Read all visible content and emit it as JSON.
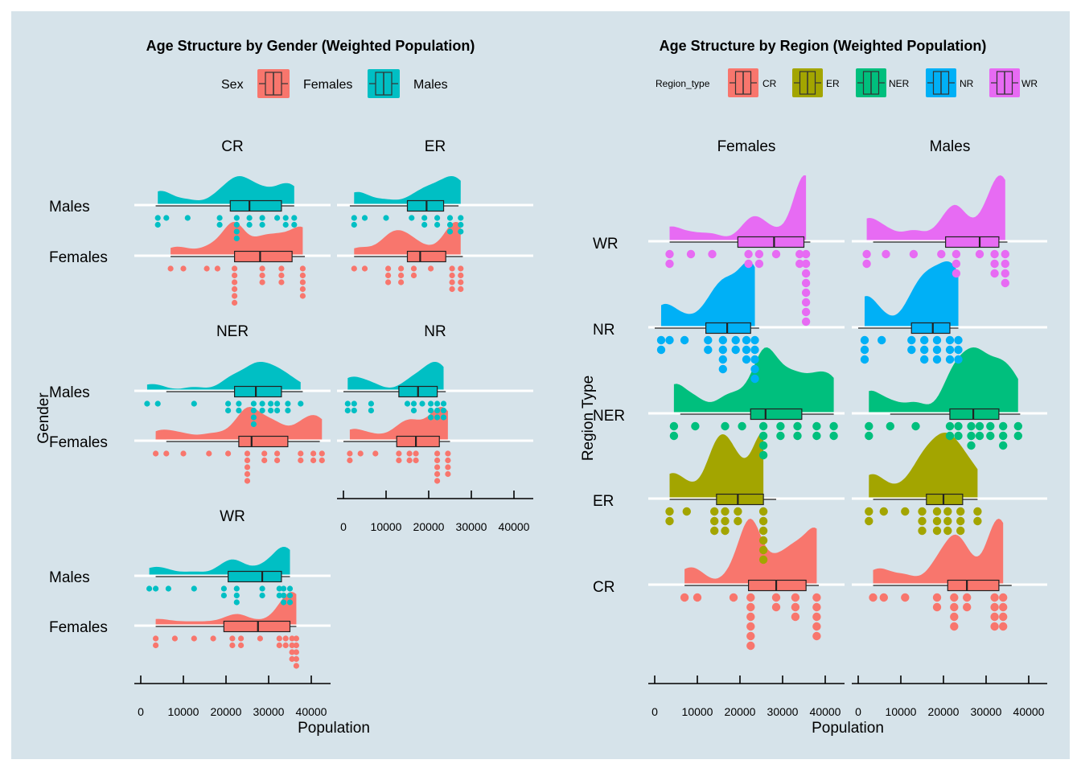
{
  "colors": {
    "background": "#d6e3ea",
    "gridline": "#ffffff",
    "Females": "#f8766d",
    "Males": "#00bfc4",
    "CR": "#f8766d",
    "ER": "#a3a500",
    "NER": "#00bf7d",
    "NR": "#00b0f6",
    "WR": "#e76bf3"
  },
  "chart_data": [
    {
      "type": "raincloud",
      "title": "Age Structure by Gender (Weighted Population)",
      "legend_title": "Sex",
      "legend_position": "top",
      "legend_entries": [
        "Females",
        "Males"
      ],
      "xlabel": "Population",
      "ylabel": "Gender",
      "x_ticks": [
        0,
        10000,
        20000,
        30000,
        40000
      ],
      "x_tick_labels": [
        "0",
        "10000",
        "20000",
        "30000",
        "40000"
      ],
      "xlim": [
        -1500,
        43500
      ],
      "categories": [
        "Males",
        "Females"
      ],
      "facets": [
        {
          "label": "CR",
          "series": [
            {
              "name": "Males",
              "box": {
                "q1": 21000,
                "median": 25500,
                "q3": 33000,
                "lo": 3500,
                "hi": 36000
              },
              "x": [
                4000,
                6000,
                11000,
                18500,
                22500,
                25500,
                28500,
                32000,
                34000,
                36000
              ],
              "dots": [
                2,
                1,
                1,
                2,
                4,
                2,
                2,
                1,
                2,
                2
              ]
            },
            {
              "name": "Females",
              "box": {
                "q1": 22000,
                "median": 28000,
                "q3": 35500,
                "lo": 7000,
                "hi": 38500
              },
              "x": [
                7000,
                10000,
                15500,
                18000,
                22000,
                28500,
                33000,
                38000
              ],
              "dots": [
                1,
                1,
                1,
                1,
                6,
                3,
                3,
                5
              ]
            }
          ]
        },
        {
          "label": "ER",
          "series": [
            {
              "name": "Males",
              "box": {
                "q1": 15000,
                "median": 19500,
                "q3": 23500,
                "lo": 1500,
                "hi": 27000
              },
              "x": [
                2500,
                5000,
                10000,
                16000,
                19000,
                22000,
                25000,
                27500
              ],
              "dots": [
                2,
                1,
                1,
                1,
                2,
                2,
                3,
                3
              ]
            },
            {
              "name": "Females",
              "box": {
                "q1": 15000,
                "median": 18000,
                "q3": 24000,
                "lo": 2500,
                "hi": 28000
              },
              "x": [
                2500,
                5000,
                10500,
                13500,
                16500,
                20500,
                25500,
                27500
              ],
              "dots": [
                1,
                1,
                3,
                3,
                2,
                1,
                4,
                4
              ]
            }
          ]
        },
        {
          "label": "NER",
          "series": [
            {
              "name": "Males",
              "box": {
                "q1": 22000,
                "median": 27000,
                "q3": 33000,
                "lo": 6000,
                "hi": 38000
              },
              "x": [
                1500,
                4000,
                12500,
                20500,
                23000,
                26500,
                28500,
                30500,
                32000,
                34500,
                37500
              ],
              "dots": [
                1,
                1,
                1,
                2,
                2,
                4,
                2,
                2,
                2,
                2,
                1
              ]
            },
            {
              "name": "Females",
              "box": {
                "q1": 23000,
                "median": 26000,
                "q3": 34500,
                "lo": 6000,
                "hi": 42000
              },
              "x": [
                3500,
                6000,
                10000,
                16000,
                20500,
                25000,
                29000,
                32000,
                37500,
                40500,
                42500
              ],
              "dots": [
                1,
                1,
                1,
                1,
                1,
                5,
                2,
                2,
                2,
                2,
                2
              ]
            }
          ]
        },
        {
          "label": "NR",
          "series": [
            {
              "name": "Males",
              "box": {
                "q1": 13000,
                "median": 17500,
                "q3": 22000,
                "lo": 0,
                "hi": 24000
              },
              "x": [
                1000,
                2500,
                6500,
                15000,
                16500,
                18500,
                20500,
                22000,
                23500
              ],
              "dots": [
                2,
                2,
                2,
                1,
                2,
                1,
                3,
                3,
                3
              ]
            },
            {
              "name": "Females",
              "box": {
                "q1": 12500,
                "median": 17000,
                "q3": 22500,
                "lo": 0,
                "hi": 25000
              },
              "x": [
                1500,
                4000,
                7500,
                13000,
                15500,
                17000,
                22000,
                24500
              ],
              "dots": [
                2,
                1,
                1,
                2,
                2,
                2,
                5,
                4
              ]
            }
          ]
        },
        {
          "label": "WR",
          "series": [
            {
              "name": "Males",
              "box": {
                "q1": 20500,
                "median": 28500,
                "q3": 33000,
                "lo": 3500,
                "hi": 35000
              },
              "x": [
                2000,
                3500,
                6500,
                12500,
                19500,
                22500,
                28500,
                32500,
                33500,
                35000
              ],
              "dots": [
                1,
                1,
                1,
                1,
                2,
                3,
                2,
                2,
                3,
                3
              ]
            },
            {
              "name": "Females",
              "box": {
                "q1": 19500,
                "median": 27500,
                "q3": 35000,
                "lo": 3500,
                "hi": 36500
              },
              "x": [
                3500,
                8000,
                12500,
                17000,
                21500,
                23500,
                28000,
                32500,
                34000,
                35500,
                36500
              ],
              "dots": [
                2,
                1,
                1,
                1,
                2,
                2,
                1,
                2,
                2,
                4,
                5
              ]
            }
          ]
        }
      ]
    },
    {
      "type": "raincloud",
      "title": "Age Structure by Region (Weighted Population)",
      "legend_title": "Region_type",
      "legend_position": "top",
      "legend_entries": [
        "CR",
        "ER",
        "NER",
        "NR",
        "WR"
      ],
      "xlabel": "Population",
      "ylabel": "Region Type",
      "x_ticks": [
        0,
        10000,
        20000,
        30000,
        40000
      ],
      "x_tick_labels": [
        "0",
        "10000",
        "20000",
        "30000",
        "40000"
      ],
      "xlim": [
        -1500,
        46000
      ],
      "categories": [
        "WR",
        "NR",
        "NER",
        "ER",
        "CR"
      ],
      "facets": [
        {
          "label": "Females",
          "series": [
            {
              "name": "WR",
              "box": {
                "q1": 19500,
                "median": 28000,
                "q3": 35000,
                "lo": 3500,
                "hi": 36500
              },
              "x": [
                3500,
                8500,
                13500,
                22000,
                24500,
                28500,
                34000,
                35500
              ],
              "dots": [
                2,
                1,
                1,
                2,
                2,
                1,
                2,
                8
              ]
            },
            {
              "name": "NR",
              "box": {
                "q1": 12000,
                "median": 17000,
                "q3": 22500,
                "lo": 0,
                "hi": 24500
              },
              "x": [
                1500,
                3500,
                7000,
                12500,
                16000,
                19000,
                21500,
                23500
              ],
              "dots": [
                2,
                1,
                1,
                2,
                4,
                2,
                3,
                5
              ]
            },
            {
              "name": "NER",
              "box": {
                "q1": 22500,
                "median": 26000,
                "q3": 34500,
                "lo": 6000,
                "hi": 42000
              },
              "x": [
                4500,
                9500,
                16500,
                20500,
                25500,
                29500,
                33500,
                38000,
                42000
              ],
              "dots": [
                2,
                1,
                1,
                1,
                4,
                2,
                2,
                2,
                2
              ]
            },
            {
              "name": "ER",
              "box": {
                "q1": 14500,
                "median": 19500,
                "q3": 25500,
                "lo": 3500,
                "hi": 28500
              },
              "x": [
                3500,
                7500,
                14000,
                16500,
                19500,
                25500
              ],
              "dots": [
                2,
                1,
                3,
                3,
                2,
                6
              ]
            },
            {
              "name": "CR",
              "box": {
                "q1": 22000,
                "median": 28500,
                "q3": 35500,
                "lo": 7000,
                "hi": 38500
              },
              "x": [
                7000,
                10000,
                18500,
                22500,
                28500,
                33000,
                38000
              ],
              "dots": [
                1,
                1,
                1,
                6,
                2,
                3,
                5
              ]
            }
          ]
        },
        {
          "label": "Males",
          "series": [
            {
              "name": "WR",
              "box": {
                "q1": 20500,
                "median": 28500,
                "q3": 33000,
                "lo": 3500,
                "hi": 35000
              },
              "x": [
                2000,
                6500,
                13000,
                19500,
                23000,
                28500,
                32000,
                34500
              ],
              "dots": [
                2,
                1,
                1,
                1,
                3,
                1,
                3,
                4
              ]
            },
            {
              "name": "NR",
              "box": {
                "q1": 12500,
                "median": 17500,
                "q3": 21500,
                "lo": 0,
                "hi": 23500
              },
              "x": [
                1500,
                5500,
                12500,
                15500,
                18500,
                21500,
                23500
              ],
              "dots": [
                3,
                1,
                2,
                3,
                3,
                3,
                3
              ]
            },
            {
              "name": "NER",
              "box": {
                "q1": 21500,
                "median": 27000,
                "q3": 33000,
                "lo": 7500,
                "hi": 38000
              },
              "x": [
                2500,
                7500,
                13500,
                21500,
                23500,
                26500,
                28500,
                31000,
                34000,
                37500
              ],
              "dots": [
                2,
                1,
                1,
                2,
                2,
                3,
                2,
                2,
                3,
                2
              ]
            },
            {
              "name": "ER",
              "box": {
                "q1": 16000,
                "median": 20000,
                "q3": 24500,
                "lo": 3500,
                "hi": 28000
              },
              "x": [
                2500,
                6000,
                11000,
                15000,
                18500,
                21000,
                24000,
                28000
              ],
              "dots": [
                2,
                1,
                1,
                3,
                3,
                3,
                3,
                2
              ]
            },
            {
              "name": "CR",
              "box": {
                "q1": 21000,
                "median": 25500,
                "q3": 33000,
                "lo": 3500,
                "hi": 36000
              },
              "x": [
                3500,
                6000,
                11000,
                18500,
                22500,
                25500,
                32000,
                34000
              ],
              "dots": [
                1,
                1,
                1,
                2,
                4,
                2,
                4,
                4
              ]
            }
          ]
        }
      ]
    }
  ]
}
